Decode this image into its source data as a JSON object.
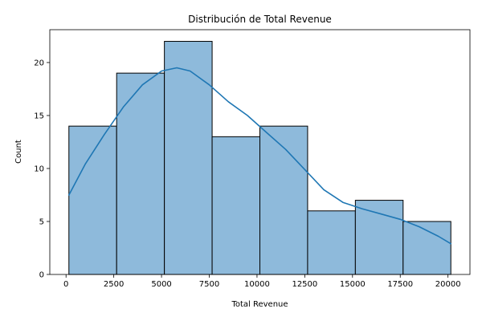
{
  "chart_data": {
    "type": "bar",
    "title": "Distribución de Total Revenue",
    "xlabel": "Total Revenue",
    "ylabel": "Count",
    "xlim": [
      -850,
      21150
    ],
    "ylim": [
      0,
      23.1
    ],
    "grid": false,
    "legend": "none",
    "bins": [
      {
        "x0": 150,
        "x1": 2650,
        "count": 14
      },
      {
        "x0": 2650,
        "x1": 5150,
        "count": 19
      },
      {
        "x0": 5150,
        "x1": 7650,
        "count": 22
      },
      {
        "x0": 7650,
        "x1": 10150,
        "count": 13
      },
      {
        "x0": 10150,
        "x1": 12650,
        "count": 14
      },
      {
        "x0": 12650,
        "x1": 15150,
        "count": 6
      },
      {
        "x0": 15150,
        "x1": 17650,
        "count": 7
      },
      {
        "x0": 17650,
        "x1": 20150,
        "count": 5
      }
    ],
    "kde": {
      "x": [
        150,
        1000,
        2000,
        3000,
        4000,
        5000,
        5800,
        6500,
        7500,
        8500,
        9500,
        10500,
        11500,
        12500,
        13500,
        14500,
        15500,
        16500,
        17500,
        18500,
        19500,
        20150
      ],
      "y": [
        7.5,
        10.4,
        13.2,
        15.8,
        17.9,
        19.2,
        19.5,
        19.2,
        17.9,
        16.3,
        15.0,
        13.4,
        11.8,
        9.9,
        8.0,
        6.8,
        6.2,
        5.7,
        5.2,
        4.5,
        3.6,
        2.9
      ]
    },
    "xticks": [
      0,
      2500,
      5000,
      7500,
      10000,
      12500,
      15000,
      17500,
      20000
    ],
    "yticks": [
      0,
      5,
      10,
      15,
      20
    ],
    "colors": {
      "bar_fill": "#8ebadb",
      "bar_edge": "#000000",
      "kde_line": "#1f77b4"
    }
  }
}
